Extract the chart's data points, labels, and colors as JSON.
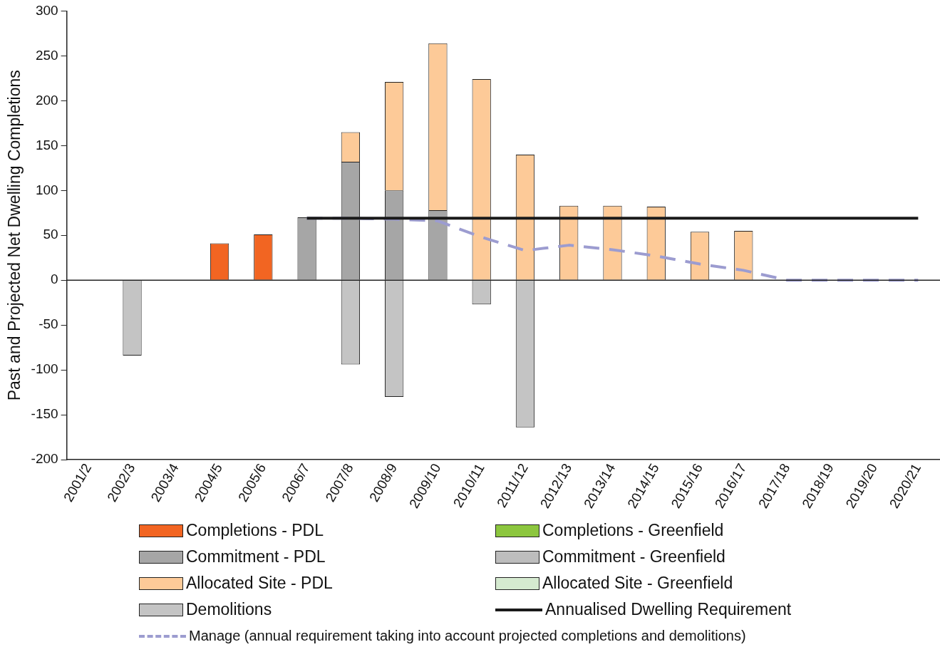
{
  "chart_data": {
    "type": "bar",
    "stacked": true,
    "ylabel": "Past and Projected Net Dwelling Completions",
    "legend": "bottom",
    "marker": "none",
    "categories": [
      "2001/2",
      "2002/3",
      "2003/4",
      "2004/5",
      "2005/6",
      "2006/7",
      "2007/8",
      "2008/9",
      "2009/10",
      "2010/11",
      "2011/12",
      "2012/13",
      "2013/14",
      "2014/15",
      "2015/16",
      "2016/17",
      "2017/18",
      "2018/19",
      "2019/20",
      "2020/21"
    ],
    "ylim": [
      -200,
      300
    ],
    "yticks": [
      -200,
      -150,
      -100,
      -50,
      0,
      50,
      100,
      150,
      200,
      250,
      300
    ],
    "series": [
      {
        "name": "Completions - PDL",
        "color": "#f26522",
        "values": [
          null,
          null,
          null,
          41,
          51,
          null,
          null,
          null,
          null,
          null,
          null,
          null,
          null,
          null,
          null,
          null,
          null,
          null,
          null,
          null
        ]
      },
      {
        "name": "Completions - Greenfield",
        "color": "#8cc63e",
        "values": [
          null,
          null,
          null,
          null,
          null,
          null,
          null,
          null,
          null,
          null,
          null,
          null,
          null,
          null,
          null,
          null,
          null,
          null,
          null,
          null
        ]
      },
      {
        "name": "Commitment - PDL",
        "color": "#a6a6a6",
        "values": [
          null,
          null,
          null,
          null,
          null,
          70,
          132,
          100,
          78,
          null,
          null,
          null,
          null,
          null,
          null,
          null,
          null,
          null,
          null,
          null
        ]
      },
      {
        "name": "Commitment - Greenfield",
        "color": "#bdbdbd",
        "values": [
          null,
          null,
          null,
          null,
          null,
          null,
          null,
          null,
          null,
          null,
          null,
          null,
          null,
          null,
          null,
          null,
          null,
          null,
          null,
          null
        ]
      },
      {
        "name": "Allocated Site - PDL",
        "color": "#fdca98",
        "values": [
          null,
          null,
          null,
          null,
          null,
          null,
          33,
          121,
          186,
          224,
          140,
          83,
          83,
          82,
          54,
          55,
          null,
          null,
          null,
          null
        ]
      },
      {
        "name": "Allocated Site - Greenfield",
        "color": "#d5ead0",
        "values": [
          null,
          null,
          null,
          null,
          null,
          null,
          null,
          null,
          null,
          null,
          null,
          null,
          null,
          null,
          null,
          null,
          null,
          null,
          null,
          null
        ]
      },
      {
        "name": "Demolitions",
        "color": "#c4c4c4",
        "values": [
          null,
          -84,
          null,
          null,
          null,
          null,
          -94,
          -130,
          null,
          -27,
          -164,
          null,
          null,
          null,
          null,
          null,
          null,
          null,
          null,
          null
        ]
      },
      {
        "name": "Annualised Dwelling Requirement",
        "type": "line",
        "line_style": "solid",
        "color": "#1a1a1a",
        "values": [
          null,
          null,
          null,
          null,
          null,
          69,
          69,
          69,
          69,
          69,
          69,
          69,
          69,
          69,
          69,
          69,
          69,
          69,
          69,
          69
        ]
      },
      {
        "name": "Manage  (annual requirement taking into account projected completions and demolitions)",
        "type": "line",
        "line_style": "dashed",
        "color": "#9c9cd0",
        "values": [
          null,
          null,
          null,
          null,
          null,
          69,
          69,
          68,
          66,
          48,
          33,
          39,
          34,
          27,
          18,
          11,
          0,
          0,
          0,
          0
        ]
      }
    ]
  }
}
